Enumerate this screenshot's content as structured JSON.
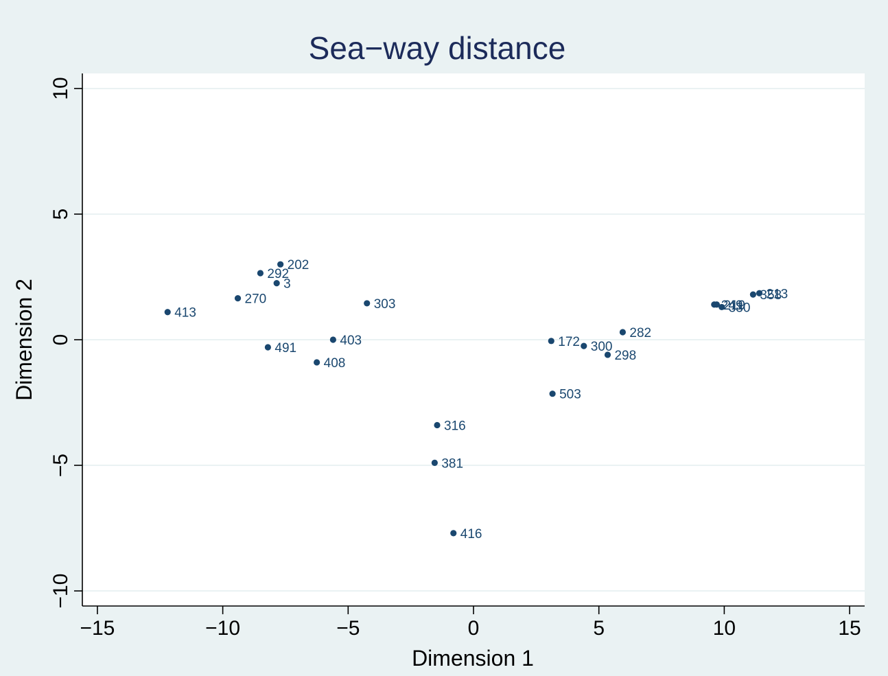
{
  "colors": {
    "page_background": "#eaf2f3",
    "plot_background": "#ffffff",
    "gridline": "#eaf2f3",
    "marker": "#1a476f",
    "title": "#1c2b5a"
  },
  "chart_data": {
    "type": "scatter",
    "title": "Sea−way distance",
    "xlabel": "Dimension 1",
    "ylabel": "Dimension 2",
    "xlim": [
      -15.6,
      15.6
    ],
    "ylim": [
      -10.6,
      10.6
    ],
    "xticks": [
      {
        "value": -15,
        "label": "−15"
      },
      {
        "value": -10,
        "label": "−10"
      },
      {
        "value": -5,
        "label": "−5"
      },
      {
        "value": 0,
        "label": "0"
      },
      {
        "value": 5,
        "label": "5"
      },
      {
        "value": 10,
        "label": "10"
      },
      {
        "value": 15,
        "label": "15"
      }
    ],
    "yticks": [
      {
        "value": -10,
        "label": "−10"
      },
      {
        "value": -5,
        "label": "−5"
      },
      {
        "value": 0,
        "label": "0"
      },
      {
        "value": 5,
        "label": "5"
      },
      {
        "value": 10,
        "label": "10"
      }
    ],
    "grid": true,
    "points": [
      {
        "label": "413",
        "x": -12.2,
        "y": 1.1
      },
      {
        "label": "270",
        "x": -9.4,
        "y": 1.65
      },
      {
        "label": "292",
        "x": -8.5,
        "y": 2.65
      },
      {
        "label": "202",
        "x": -7.7,
        "y": 3.0
      },
      {
        "label": "3",
        "x": -7.85,
        "y": 2.25
      },
      {
        "label": "491",
        "x": -8.2,
        "y": -0.3
      },
      {
        "label": "408",
        "x": -6.25,
        "y": -0.9
      },
      {
        "label": "403",
        "x": -5.6,
        "y": 0.0
      },
      {
        "label": "303",
        "x": -4.25,
        "y": 1.45
      },
      {
        "label": "316",
        "x": -1.45,
        "y": -3.4
      },
      {
        "label": "381",
        "x": -1.55,
        "y": -4.9
      },
      {
        "label": "416",
        "x": -0.8,
        "y": -7.7
      },
      {
        "label": "172",
        "x": 3.1,
        "y": -0.05
      },
      {
        "label": "503",
        "x": 3.15,
        "y": -2.15
      },
      {
        "label": "300",
        "x": 4.4,
        "y": -0.25
      },
      {
        "label": "298",
        "x": 5.35,
        "y": -0.6
      },
      {
        "label": "282",
        "x": 5.95,
        "y": 0.3
      },
      {
        "label": "249",
        "x": 9.6,
        "y": 1.4
      },
      {
        "label": "219",
        "x": 9.7,
        "y": 1.4
      },
      {
        "label": "330",
        "x": 9.9,
        "y": 1.3
      },
      {
        "label": "358",
        "x": 11.15,
        "y": 1.8
      },
      {
        "label": "213",
        "x": 11.4,
        "y": 1.85
      }
    ]
  }
}
